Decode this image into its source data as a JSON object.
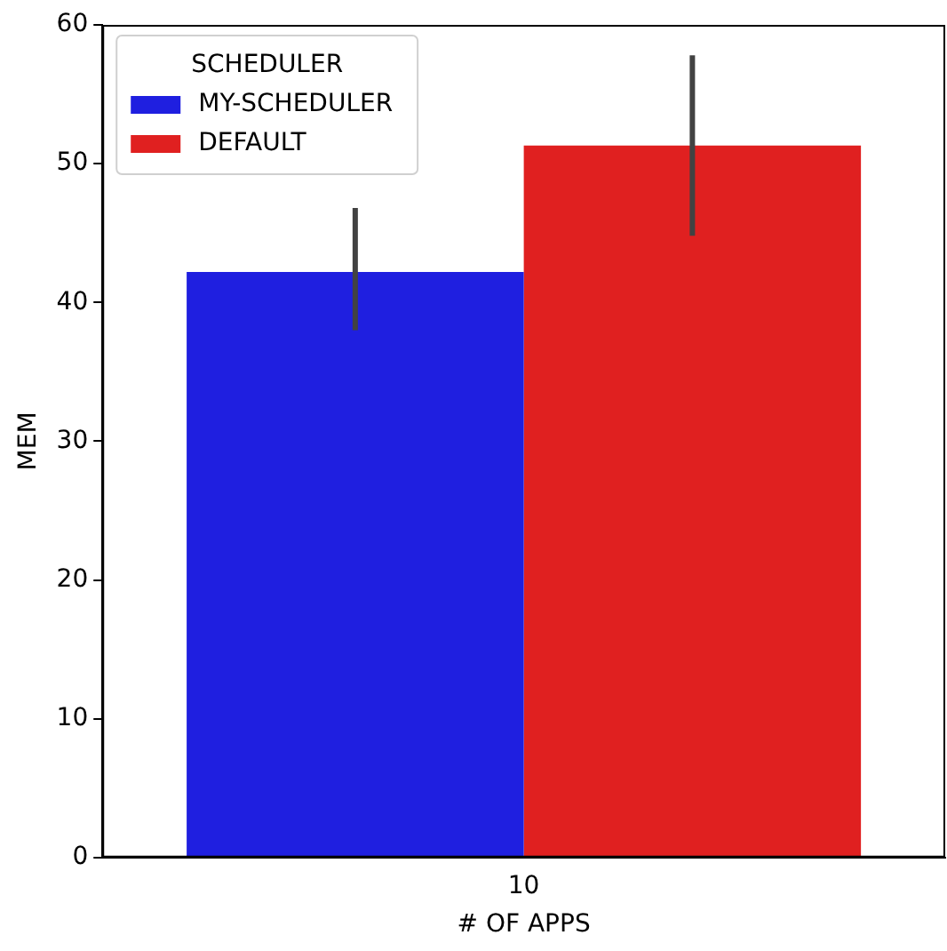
{
  "chart_data": {
    "type": "bar",
    "xlabel": "# OF APPS",
    "ylabel": "MEM",
    "legend_title": "SCHEDULER",
    "categories": [
      "10"
    ],
    "series": [
      {
        "name": "MY-SCHEDULER",
        "color": "#1f1fe0",
        "values": [
          42.2
        ],
        "errors": [
          [
            38.0,
            46.8
          ]
        ]
      },
      {
        "name": "DEFAULT",
        "color": "#e02020",
        "values": [
          51.3
        ],
        "errors": [
          [
            44.8,
            57.8
          ]
        ]
      }
    ],
    "ylim": [
      0,
      60
    ],
    "yticks": [
      0,
      10,
      20,
      30,
      40,
      50,
      60
    ],
    "grid": false,
    "legend": "top left"
  }
}
